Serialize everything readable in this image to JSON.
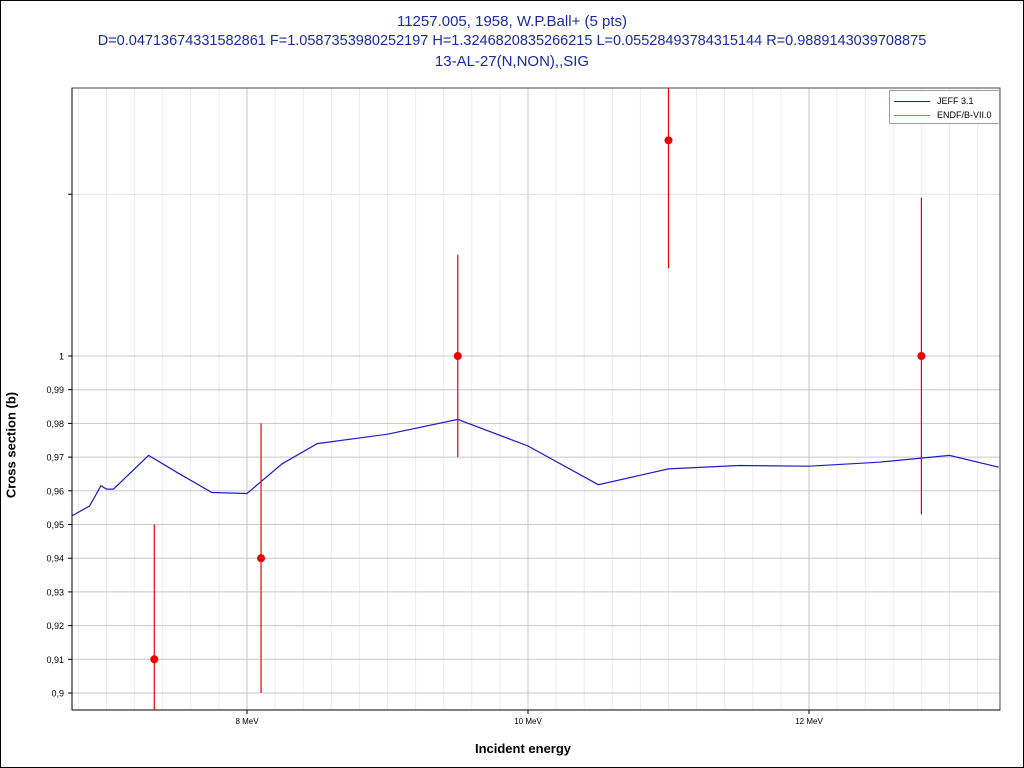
{
  "title": {
    "line1": "11257.005, 1958, W.P.Ball+ (5 pts)",
    "line2": "D=0.04713674331582861 F=1.0587353980252197 H=1.3246820835266215 L=0.05528493784315144 R=0.9889143039708875",
    "line3": "13-AL-27(N,NON),,SIG"
  },
  "colors": {
    "title": "#1a2aa8",
    "jeff": "#1c1cc8",
    "endf": "#22cc22",
    "points": "#ee0000"
  },
  "chart_data": {
    "type": "line",
    "xlabel": "Incident energy",
    "ylabel": "Cross section (b)",
    "xlim": [
      6.75,
      13.35
    ],
    "ylim": [
      0.895,
      1.1
    ],
    "x_ticks": [
      {
        "value": 8,
        "label": "8 MeV"
      },
      {
        "value": 10,
        "label": "10 MeV"
      },
      {
        "value": 12,
        "label": "12 MeV"
      }
    ],
    "y_ticks": [
      {
        "value": 0.9,
        "label": "0,9"
      },
      {
        "value": 0.91,
        "label": "0,91"
      },
      {
        "value": 0.92,
        "label": "0,92"
      },
      {
        "value": 0.93,
        "label": "0,93"
      },
      {
        "value": 0.94,
        "label": "0,94"
      },
      {
        "value": 0.95,
        "label": "0,95"
      },
      {
        "value": 0.96,
        "label": "0,96"
      },
      {
        "value": 0.97,
        "label": "0,97"
      },
      {
        "value": 0.98,
        "label": "0,98"
      },
      {
        "value": 0.99,
        "label": "0,99"
      },
      {
        "value": 1.0,
        "label": "1"
      }
    ],
    "grid": true,
    "legend_position": "top-right",
    "series": [
      {
        "name": "JEFF 3.1",
        "kind": "line",
        "x": [
          6.75,
          6.88,
          6.96,
          7.0,
          7.05,
          7.3,
          7.5,
          7.75,
          8.0,
          8.25,
          8.5,
          9.0,
          9.5,
          10.0,
          10.5,
          11.0,
          11.5,
          12.0,
          12.5,
          13.0,
          13.35
        ],
        "y": [
          0.9525,
          0.9555,
          0.9615,
          0.9605,
          0.9605,
          0.9705,
          0.9655,
          0.9595,
          0.9592,
          0.968,
          0.974,
          0.9768,
          0.9812,
          0.9733,
          0.9618,
          0.9665,
          0.9675,
          0.9673,
          0.9685,
          0.9705,
          0.967
        ]
      },
      {
        "name": "ENDF/B-VII.0",
        "kind": "line",
        "x": [],
        "y": []
      },
      {
        "name": "W.P.Ball+ (5 pts)",
        "kind": "errorbar",
        "points": [
          {
            "x": 7.34,
            "y": 0.91,
            "err": 0.04
          },
          {
            "x": 8.1,
            "y": 0.94,
            "err": 0.04
          },
          {
            "x": 9.5,
            "y": 1.0,
            "err": 0.03
          },
          {
            "x": 11.0,
            "y": 1.064,
            "err": 0.038
          },
          {
            "x": 12.8,
            "y": 1.0,
            "err": 0.047
          }
        ]
      }
    ]
  }
}
